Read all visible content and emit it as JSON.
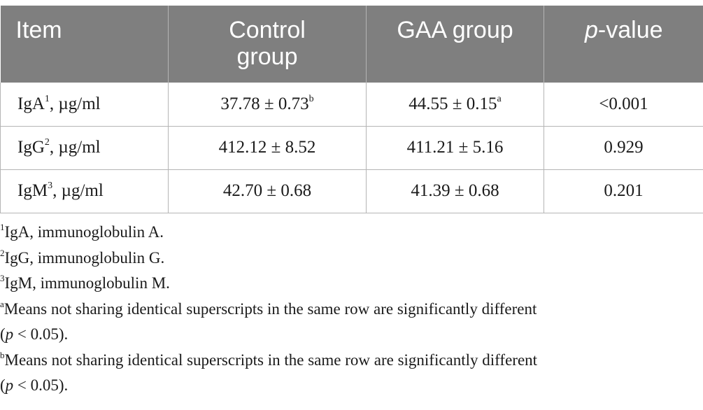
{
  "table": {
    "headers": {
      "item": "Item",
      "control_line1": "Control",
      "control_line2": "group",
      "gaa": "GAA group",
      "p_italic": "p",
      "p_rest": "-value"
    },
    "rows": [
      {
        "name": "IgA",
        "sup": "1",
        "unit": ", µg/ml",
        "control": "37.78 ± 0.73",
        "control_sup": "b",
        "gaa": "44.55 ± 0.15",
        "gaa_sup": "a",
        "p": "<0.001"
      },
      {
        "name": "IgG",
        "sup": "2",
        "unit": ", µg/ml",
        "control": "412.12 ± 8.52",
        "control_sup": "",
        "gaa": "411.21 ± 5.16",
        "gaa_sup": "",
        "p": "0.929"
      },
      {
        "name": "IgM",
        "sup": "3",
        "unit": ", µg/ml",
        "control": "42.70 ± 0.68",
        "control_sup": "",
        "gaa": "41.39 ± 0.68",
        "gaa_sup": "",
        "p": "0.201"
      }
    ]
  },
  "footnotes": {
    "n1_mark": "1",
    "n1_text": "IgA, immunoglobulin A.",
    "n2_mark": "2",
    "n2_text": "IgG, immunoglobulin G.",
    "n3_mark": "3",
    "n3_text": "IgM, immunoglobulin M.",
    "na_mark": "a",
    "na_text": "Means not sharing identical superscripts in the same row are significantly different",
    "na_p": "p",
    "na_end": " < 0.05).",
    "nb_mark": "b",
    "nb_text": "Means not sharing identical superscripts in the same row are significantly different",
    "nb_p": "p",
    "nb_end": " < 0.05)."
  }
}
